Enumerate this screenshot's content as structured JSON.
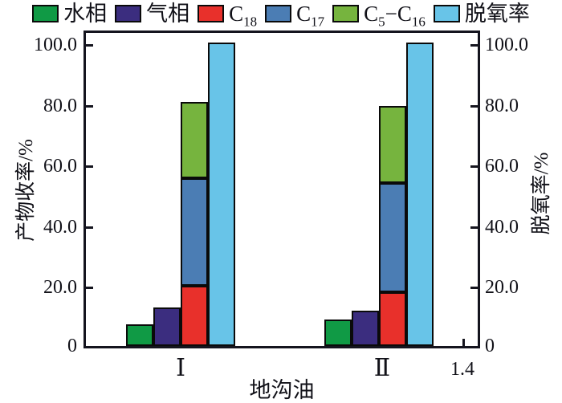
{
  "figure": {
    "background": "#ffffff",
    "frame_color": "#14141e"
  },
  "legend": {
    "items": [
      {
        "label": "水相",
        "color": "#109a45"
      },
      {
        "label": "气相",
        "color": "#3b2d7f"
      },
      {
        "base": "C",
        "sub": "18",
        "color": "#e8302b"
      },
      {
        "base": "C",
        "sub": "17",
        "color": "#4b7db4"
      },
      {
        "base": "C",
        "sub": "5",
        "dash": "−",
        "base2": "C",
        "sub2": "16",
        "color": "#76b43e"
      },
      {
        "label": "脱氧率",
        "color": "#68c4e8"
      }
    ]
  },
  "axes": {
    "left": {
      "title": "产物收率/%",
      "tick_labels": [
        "100.0",
        "80.0",
        "60.0",
        "40.0",
        "20.0",
        "0"
      ]
    },
    "right": {
      "title": "脱氧率/%",
      "tick_labels": [
        "100.0",
        "80.0",
        "60.0",
        "40.0",
        "20.0",
        "0"
      ]
    },
    "bottom": {
      "title": "地沟油",
      "category_labels": [
        "Ⅰ",
        "Ⅱ"
      ],
      "extra_tick_label": "1.4"
    }
  },
  "chart_data": {
    "type": "bar",
    "title": "",
    "xlabel": "地沟油",
    "ylabel_left": "产物收率/%",
    "ylabel_right": "脱氧率/%",
    "categories": [
      "Ⅰ",
      "Ⅱ"
    ],
    "ylim": [
      0,
      100
    ],
    "y_tick_step": 20,
    "grid": false,
    "legend_position": "top",
    "series": [
      {
        "name": "水相",
        "type": "bar",
        "values": [
          7.2,
          8.8
        ],
        "color": "#109a45"
      },
      {
        "name": "气相",
        "type": "bar",
        "values": [
          12.8,
          11.6
        ],
        "color": "#3b2d7f"
      },
      {
        "name": "C18",
        "type": "bar",
        "stack": "products",
        "values": [
          19.8,
          17.8
        ],
        "color": "#e8302b"
      },
      {
        "name": "C17",
        "type": "bar",
        "stack": "products",
        "values": [
          35.4,
          36.0
        ],
        "color": "#4b7db4"
      },
      {
        "name": "C5-C16",
        "type": "bar",
        "stack": "products",
        "values": [
          25.3,
          25.4
        ],
        "color": "#76b43e"
      },
      {
        "name": "脱氧率",
        "type": "bar",
        "axis": "right",
        "values": [
          100.0,
          100.0
        ],
        "color": "#68c4e8"
      }
    ],
    "stack_totals": [
      80.5,
      79.2
    ],
    "x_extra_tick": 1.4
  }
}
